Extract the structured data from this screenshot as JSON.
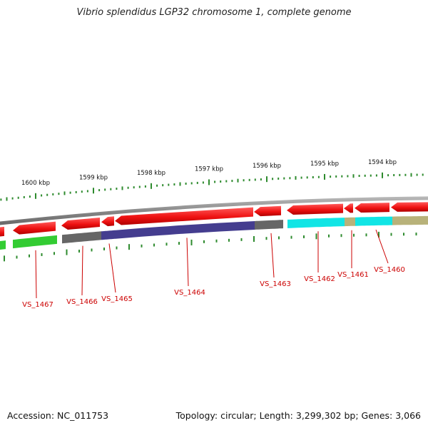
{
  "title": "Vibrio splendidus LGP32 chromosome 1, complete genome",
  "colors": {
    "backbone": "#8a8a8a",
    "tick": "#2e8b2e",
    "gene_forward": "#ee1111",
    "label": "#cc0000",
    "leader": "#cc0000"
  },
  "scale": {
    "unit": "kbp",
    "labels": [
      {
        "kbp": 1600,
        "text": "1600 kbp"
      },
      {
        "kbp": 1599,
        "text": "1599 kbp"
      },
      {
        "kbp": 1598,
        "text": "1598 kbp"
      },
      {
        "kbp": 1597,
        "text": "1597 kbp"
      },
      {
        "kbp": 1596,
        "text": "1596 kbp"
      },
      {
        "kbp": 1595,
        "text": "1595 kbp"
      },
      {
        "kbp": 1594,
        "text": "1594 kbp"
      }
    ]
  },
  "genes": [
    {
      "name": "VS_1467",
      "color": "#33cc33"
    },
    {
      "name": "VS_1466",
      "color": "#666666"
    },
    {
      "name": "VS_1465",
      "color": "#443d8f"
    },
    {
      "name": "VS_1464",
      "color": "#443d8f"
    },
    {
      "name": "VS_1463",
      "color": "#666666"
    },
    {
      "name": "VS_1462",
      "color": "#11e5e5"
    },
    {
      "name": "VS_1461",
      "color": "#b8b27a"
    },
    {
      "name": "VS_1460",
      "color": "#11e5e5"
    }
  ],
  "footer": {
    "accession": "Accession: NC_011753",
    "topology": "Topology: circular; Length: 3,299,302 bp; Genes: 3,066"
  }
}
